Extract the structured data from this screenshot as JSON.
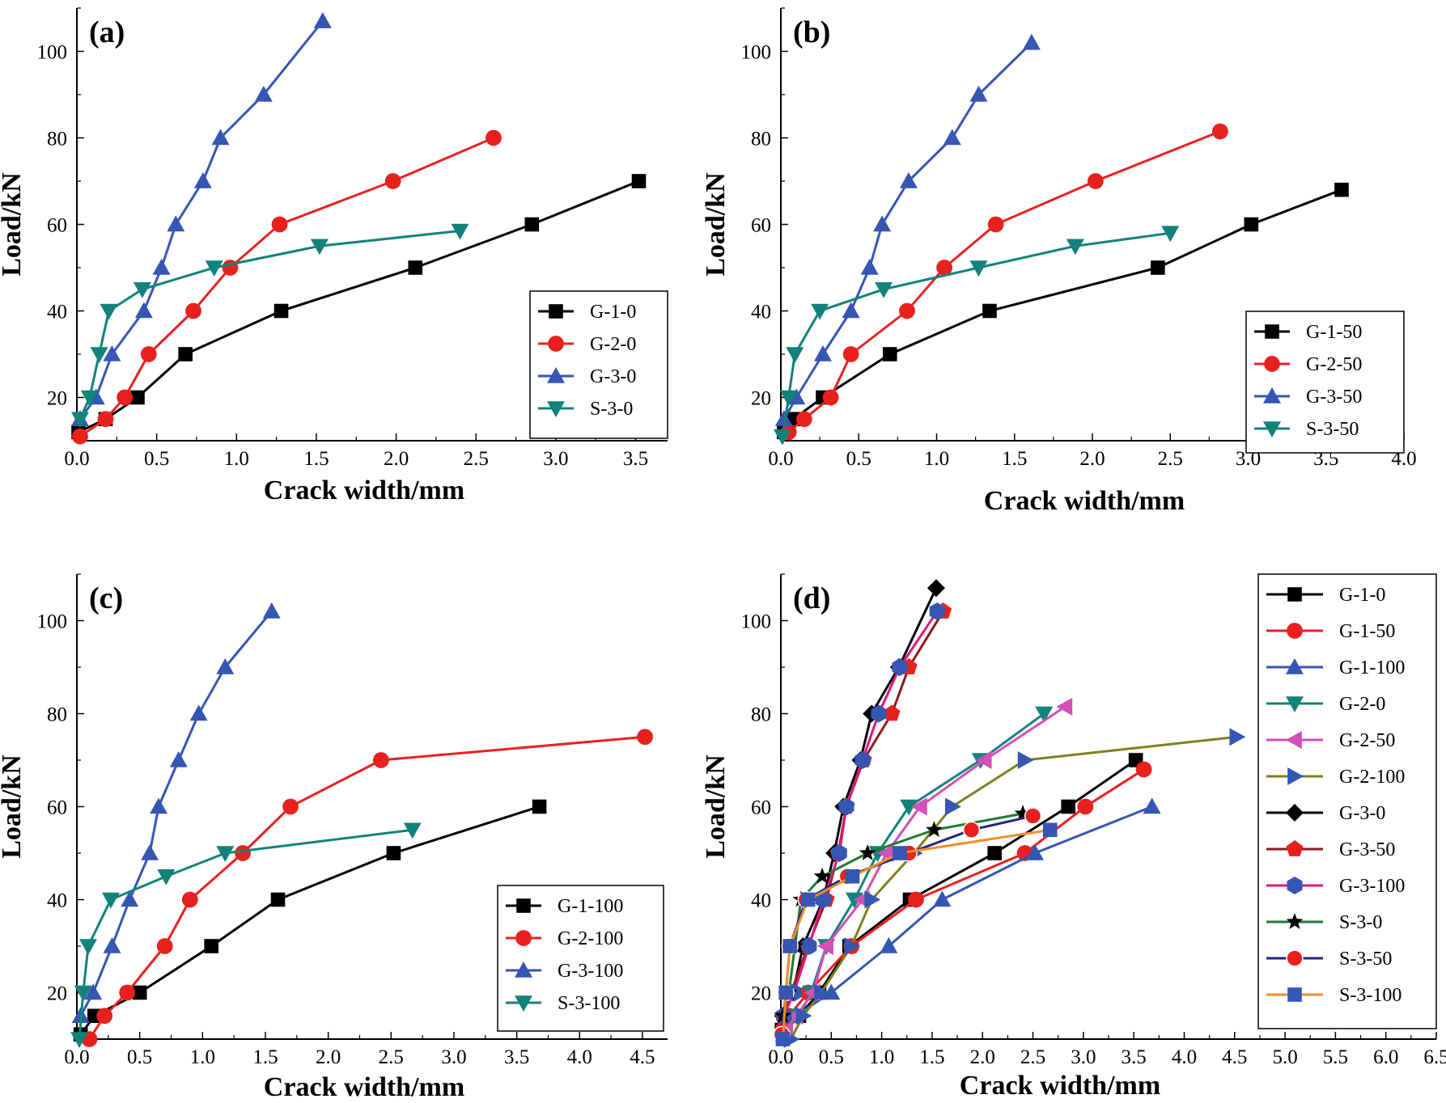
{
  "colors": {
    "black": "#000000",
    "red": "#e8211f",
    "blue": "#3656b4",
    "teal": "#13827a",
    "pink": "#d44fb8",
    "olive": "#7f7f1e",
    "darkred": "#8b1a1a",
    "orange": "#f28c28",
    "green": "#1e7a32",
    "navy": "#23237f",
    "magenta": "#e0197d"
  },
  "chart_data": [
    {
      "id": "a",
      "type": "line",
      "panel_label": "(a)",
      "xlabel": "Crack width/mm",
      "ylabel": "Load/kN",
      "xlim": [
        0,
        3.7
      ],
      "ylim": [
        10,
        110
      ],
      "xticks": [
        "0.0",
        "0.5",
        "1.0",
        "1.5",
        "2.0",
        "2.5",
        "3.0",
        "3.5"
      ],
      "yticks": [
        "20",
        "40",
        "60",
        "80",
        "100"
      ],
      "legend_position": "bottom-right",
      "series": [
        {
          "name": "G-1-0",
          "color": "black",
          "marker": "square",
          "x": [
            0.01,
            0.18,
            0.38,
            0.68,
            1.28,
            2.12,
            2.85,
            3.52
          ],
          "y": [
            12,
            15,
            20,
            30,
            40,
            50,
            60,
            70
          ]
        },
        {
          "name": "G-2-0",
          "color": "red",
          "marker": "circle",
          "x": [
            0.02,
            0.18,
            0.3,
            0.45,
            0.73,
            0.96,
            1.27,
            1.98,
            2.61
          ],
          "y": [
            11,
            15,
            20,
            30,
            40,
            50,
            60,
            70,
            80
          ]
        },
        {
          "name": "G-3-0",
          "color": "blue",
          "marker": "triangle-up",
          "x": [
            0.02,
            0.12,
            0.22,
            0.42,
            0.53,
            0.62,
            0.79,
            0.9,
            1.17,
            1.54
          ],
          "y": [
            15,
            20,
            30,
            40,
            50,
            60,
            70,
            80,
            90,
            107
          ]
        },
        {
          "name": "S-3-0",
          "color": "teal",
          "marker": "triangle-down",
          "x": [
            0.02,
            0.08,
            0.14,
            0.2,
            0.41,
            0.86,
            1.52,
            2.4
          ],
          "y": [
            15,
            20,
            30,
            40,
            45,
            50,
            55,
            58.5
          ]
        }
      ]
    },
    {
      "id": "b",
      "type": "line",
      "panel_label": "(b)",
      "xlabel": "Crack width/mm",
      "ylabel": "Load/kN",
      "xlim": [
        0,
        4.0
      ],
      "ylim": [
        10,
        110
      ],
      "xticks": [
        "0.0",
        "0.5",
        "1.0",
        "1.5",
        "2.0",
        "2.5",
        "3.0",
        "3.5",
        "4.0"
      ],
      "yticks": [
        "20",
        "40",
        "60",
        "80",
        "100"
      ],
      "legend_position": "bottom-right",
      "series": [
        {
          "name": "G-1-50",
          "color": "black",
          "marker": "square",
          "x": [
            0.02,
            0.08,
            0.27,
            0.7,
            1.34,
            2.42,
            3.02,
            3.6
          ],
          "y": [
            12,
            15,
            20,
            30,
            40,
            50,
            60,
            68
          ]
        },
        {
          "name": "G-2-50",
          "color": "red",
          "marker": "circle",
          "x": [
            0.05,
            0.15,
            0.32,
            0.45,
            0.81,
            1.05,
            1.38,
            2.02,
            2.82
          ],
          "y": [
            12,
            15,
            20,
            30,
            40,
            50,
            60,
            70,
            81.5
          ]
        },
        {
          "name": "G-3-50",
          "color": "blue",
          "marker": "triangle-up",
          "x": [
            0.02,
            0.1,
            0.27,
            0.45,
            0.57,
            0.65,
            0.82,
            1.1,
            1.27,
            1.61
          ],
          "y": [
            15,
            20,
            30,
            40,
            50,
            60,
            70,
            80,
            90,
            102
          ]
        },
        {
          "name": "S-3-50",
          "color": "teal",
          "marker": "triangle-down",
          "x": [
            0.01,
            0.05,
            0.09,
            0.25,
            0.66,
            1.27,
            1.89,
            2.5
          ],
          "y": [
            11,
            20,
            30,
            40,
            45,
            50,
            55,
            58
          ]
        }
      ]
    },
    {
      "id": "c",
      "type": "line",
      "panel_label": "(c)",
      "xlabel": "Crack width/mm",
      "ylabel": "Load/kN",
      "xlim": [
        0,
        4.7
      ],
      "ylim": [
        10,
        110
      ],
      "xticks": [
        "0.0",
        "0.5",
        "1.0",
        "1.5",
        "2.0",
        "2.5",
        "3.0",
        "3.5",
        "4.0",
        "4.5"
      ],
      "yticks": [
        "20",
        "40",
        "60",
        "80",
        "100"
      ],
      "legend_position": "bottom-right",
      "series": [
        {
          "name": "G-1-100",
          "color": "black",
          "marker": "square",
          "x": [
            0.03,
            0.14,
            0.5,
            1.07,
            1.6,
            2.52,
            3.68
          ],
          "y": [
            11,
            15,
            20,
            30,
            40,
            50,
            60
          ]
        },
        {
          "name": "G-2-100",
          "color": "red",
          "marker": "circle",
          "x": [
            0.1,
            0.22,
            0.4,
            0.7,
            0.9,
            1.32,
            1.7,
            2.42,
            4.52
          ],
          "y": [
            10,
            15,
            20,
            30,
            40,
            50,
            60,
            70,
            75
          ]
        },
        {
          "name": "G-3-100",
          "color": "blue",
          "marker": "triangle-up",
          "x": [
            0.03,
            0.13,
            0.28,
            0.42,
            0.58,
            0.65,
            0.81,
            0.97,
            1.18,
            1.55
          ],
          "y": [
            15,
            20,
            30,
            40,
            50,
            60,
            70,
            80,
            90,
            102
          ]
        },
        {
          "name": "S-3-100",
          "color": "teal",
          "marker": "triangle-down",
          "x": [
            0.02,
            0.05,
            0.09,
            0.27,
            0.71,
            1.18,
            2.67
          ],
          "y": [
            10,
            20,
            30,
            40,
            45,
            50,
            55
          ]
        }
      ]
    },
    {
      "id": "d",
      "type": "line",
      "panel_label": "(d)",
      "xlabel": "Crack width/mm",
      "ylabel": "Load/kN",
      "xlim": [
        0,
        6.5
      ],
      "ylim": [
        10,
        110
      ],
      "xticks": [
        "0.0",
        "0.5",
        "1.0",
        "1.5",
        "2.0",
        "2.5",
        "3.0",
        "3.5",
        "4.0",
        "4.5",
        "5.0",
        "5.5",
        "6.0",
        "6.5"
      ],
      "yticks": [
        "20",
        "40",
        "60",
        "80",
        "100"
      ],
      "legend_position": "top-right",
      "series": [
        {
          "name": "G-1-0",
          "color": "black",
          "marker": "square",
          "x": [
            0.01,
            0.18,
            0.38,
            0.68,
            1.28,
            2.12,
            2.85,
            3.52
          ],
          "y": [
            12,
            15,
            20,
            30,
            40,
            50,
            60,
            70
          ]
        },
        {
          "name": "G-1-50",
          "color": "red",
          "marker": "circle",
          "x": [
            0.02,
            0.08,
            0.27,
            0.7,
            1.34,
            2.42,
            3.02,
            3.6
          ],
          "y": [
            12,
            15,
            20,
            30,
            40,
            50,
            60,
            68
          ]
        },
        {
          "name": "G-1-100",
          "color": "blue",
          "marker": "triangle-up",
          "x": [
            0.03,
            0.14,
            0.5,
            1.07,
            1.6,
            2.52,
            3.68
          ],
          "y": [
            11,
            15,
            20,
            30,
            40,
            50,
            60
          ]
        },
        {
          "name": "G-2-0",
          "color": "teal",
          "marker": "triangle-down",
          "x": [
            0.02,
            0.18,
            0.3,
            0.45,
            0.73,
            0.96,
            1.27,
            1.98,
            2.61
          ],
          "y": [
            11,
            15,
            20,
            30,
            40,
            50,
            60,
            70,
            80
          ]
        },
        {
          "name": "G-2-50",
          "color": "pink",
          "marker": "triangle-left",
          "x": [
            0.05,
            0.15,
            0.32,
            0.45,
            0.81,
            1.05,
            1.38,
            2.02,
            2.82
          ],
          "y": [
            12,
            15,
            20,
            30,
            40,
            50,
            60,
            70,
            81.5
          ]
        },
        {
          "name": "G-2-100",
          "color": "olive",
          "marker": "triangle-right",
          "x": [
            0.1,
            0.22,
            0.4,
            0.7,
            0.9,
            1.32,
            1.7,
            2.42,
            4.52
          ],
          "y": [
            10,
            15,
            20,
            30,
            40,
            50,
            60,
            70,
            75
          ]
        },
        {
          "name": "G-3-0",
          "color": "black",
          "marker": "diamond",
          "x": [
            0.02,
            0.12,
            0.22,
            0.42,
            0.53,
            0.62,
            0.79,
            0.9,
            1.17,
            1.54
          ],
          "y": [
            15,
            20,
            30,
            40,
            50,
            60,
            70,
            80,
            90,
            107
          ]
        },
        {
          "name": "G-3-50",
          "color": "darkred",
          "marker": "pentagon",
          "x": [
            0.02,
            0.1,
            0.27,
            0.45,
            0.57,
            0.65,
            0.82,
            1.1,
            1.27,
            1.61
          ],
          "y": [
            15,
            20,
            30,
            40,
            50,
            60,
            70,
            80,
            90,
            102
          ]
        },
        {
          "name": "G-3-100",
          "color": "magenta",
          "marker": "hexagon",
          "x": [
            0.03,
            0.13,
            0.28,
            0.42,
            0.58,
            0.65,
            0.81,
            0.97,
            1.18,
            1.55
          ],
          "y": [
            15,
            20,
            30,
            40,
            50,
            60,
            70,
            80,
            90,
            102
          ]
        },
        {
          "name": "S-3-0",
          "color": "green",
          "marker": "star",
          "x": [
            0.02,
            0.08,
            0.14,
            0.2,
            0.41,
            0.86,
            1.52,
            2.4
          ],
          "y": [
            15,
            20,
            30,
            40,
            45,
            50,
            55,
            58.5
          ]
        },
        {
          "name": "S-3-50",
          "color": "navy",
          "marker": "ball",
          "x": [
            0.01,
            0.05,
            0.09,
            0.25,
            0.66,
            1.27,
            1.89,
            2.5
          ],
          "y": [
            11,
            20,
            30,
            40,
            45,
            50,
            55,
            58
          ]
        },
        {
          "name": "S-3-100",
          "color": "orange",
          "marker": "square-blue",
          "x": [
            0.02,
            0.05,
            0.09,
            0.27,
            0.71,
            1.18,
            2.67
          ],
          "y": [
            10,
            20,
            30,
            40,
            45,
            50,
            55
          ]
        }
      ]
    }
  ]
}
